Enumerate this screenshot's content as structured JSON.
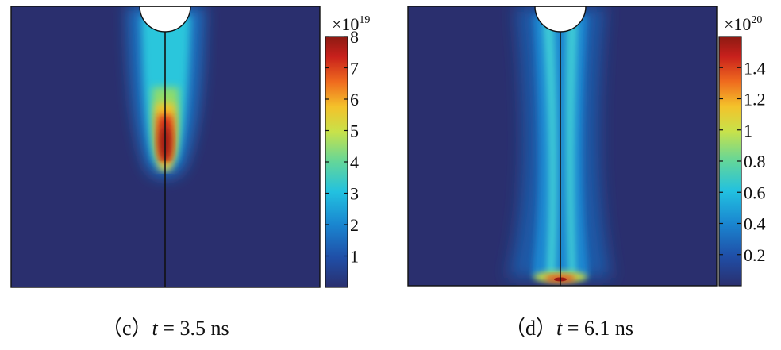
{
  "colors": {
    "colormap": [
      "#2a2f6e",
      "#1f4fa8",
      "#1a86d0",
      "#22c1e0",
      "#63d69a",
      "#c8e24a",
      "#f4c22a",
      "#ef6a1e",
      "#c8201c",
      "#8c1a12"
    ],
    "background_field": "#2a2f6e",
    "frame": "#111111"
  },
  "chart_data": [
    {
      "type": "heatmap",
      "panel": "c",
      "caption": {
        "open": "（c）",
        "var": "t",
        "eq": " = 3.5 ns"
      },
      "colorbar": {
        "multiplier_base": "×10",
        "multiplier_exp": "19",
        "min": 0,
        "max": 8,
        "ticks": [
          "1",
          "2",
          "3",
          "4",
          "5",
          "6",
          "7",
          "8"
        ],
        "tick_values": [
          1,
          2,
          3,
          4,
          5,
          6,
          7,
          8
        ]
      },
      "field": {
        "description_values": "streamer channel from top electrode; peak near tip",
        "tip_depth_fraction": 0.59,
        "peak_value": 7.5,
        "channel_width_fraction": 0.14
      }
    },
    {
      "type": "heatmap",
      "panel": "d",
      "caption": {
        "open": "（d）",
        "var": "t",
        "eq": " = 6.1 ns"
      },
      "colorbar": {
        "multiplier_base": "×10",
        "multiplier_exp": "20",
        "min": 0,
        "max": 1.6,
        "ticks": [
          "0.2",
          "0.4",
          "0.6",
          "0.8",
          "1",
          "1.2",
          "1.4"
        ],
        "tick_values": [
          0.2,
          0.4,
          0.6,
          0.8,
          1.0,
          1.2,
          1.4
        ]
      },
      "field": {
        "tip_depth_fraction": 1.0,
        "peak_value": 1.5,
        "channel_width_fraction": 0.2
      }
    }
  ]
}
